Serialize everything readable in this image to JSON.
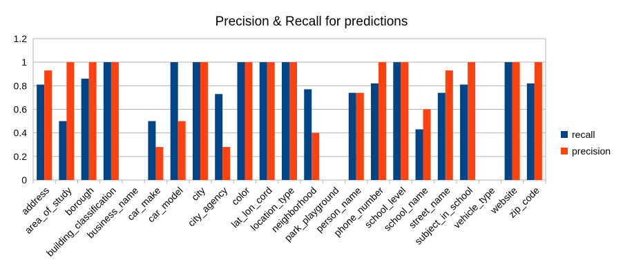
{
  "chart_data": {
    "type": "bar",
    "title": "Precision & Recall for predictions",
    "xlabel": "",
    "ylabel": "",
    "ylim": [
      0,
      1.2
    ],
    "yticks": [
      "0",
      "0.2",
      "0.4",
      "0.6",
      "0.8",
      "1",
      "1.2"
    ],
    "grid": true,
    "legend_position": "right",
    "categories": [
      "address",
      "area_of_study",
      "borough",
      "building_classification",
      "business_name",
      "car_make",
      "car_model",
      "city",
      "city_agency",
      "color",
      "lat_lon_cord",
      "location_type",
      "neighborhood",
      "park_playground",
      "person_name",
      "phone_number",
      "school_level",
      "school_name",
      "street_name",
      "subject_in_school",
      "vehicle_type",
      "website",
      "zip_code"
    ],
    "series": [
      {
        "name": "recall",
        "color": "#004586",
        "values": [
          0.81,
          0.5,
          0.86,
          1,
          0,
          0.5,
          1,
          1,
          0.73,
          1,
          1,
          1,
          0.77,
          0,
          0.74,
          0.82,
          1,
          0.43,
          0.74,
          0.81,
          0,
          1,
          0.82
        ]
      },
      {
        "name": "precision",
        "color": "#ff420e",
        "values": [
          0.93,
          1,
          1,
          1,
          0,
          0.28,
          0.5,
          1,
          0.28,
          1,
          1,
          1,
          0.4,
          0,
          0.74,
          1,
          1,
          0.6,
          0.93,
          1,
          0,
          1,
          1
        ]
      }
    ]
  }
}
